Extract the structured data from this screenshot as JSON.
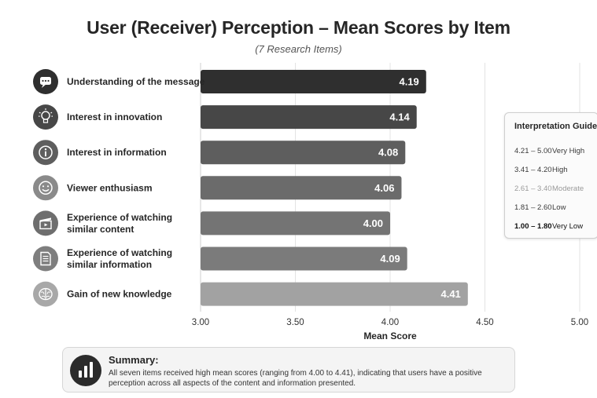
{
  "chart_data": {
    "type": "bar",
    "orientation": "horizontal",
    "title": "User (Receiver) Perception – Mean Scores by Item",
    "subtitle": "(7 Research Items)",
    "xlabel": "Mean Score",
    "ylabel": "",
    "xlim": [
      3.0,
      5.0
    ],
    "x_ticks": [
      "3.00",
      "3.50",
      "4.00",
      "4.50",
      "5.00"
    ],
    "grid": true,
    "categories": [
      [
        "Understanding of the message"
      ],
      [
        "Interest in innovation"
      ],
      [
        "Interest in information"
      ],
      [
        "Viewer enthusiasm"
      ],
      [
        "Experience of watching",
        "similar content"
      ],
      [
        "Experience of watching",
        "similar information"
      ],
      [
        "Gain of new knowledge"
      ]
    ],
    "values": [
      4.19,
      4.14,
      4.08,
      4.06,
      4.0,
      4.09,
      4.41
    ],
    "value_labels": [
      "4.19",
      "4.14",
      "4.08",
      "4.06",
      "4.00",
      "4.09",
      "4.41"
    ],
    "icons": [
      "chat-bubble-icon",
      "lightbulb-icon",
      "info-icon",
      "smiley-icon",
      "clapperboard-icon",
      "document-icon",
      "brain-icon"
    ],
    "bar_colors": [
      "#2f2f2f",
      "#474747",
      "#5e5e5e",
      "#6b6b6b",
      "#747474",
      "#7b7b7b",
      "#a2a2a2"
    ],
    "icon_colors": [
      "#2f2f2f",
      "#474747",
      "#5e5e5e",
      "#8a8a8a",
      "#6e6e6e",
      "#7e7e7e",
      "#a8a8a8"
    ]
  },
  "guide": {
    "title": "Interpretation Guide",
    "rows": [
      {
        "range": "4.21 – 5.00",
        "label": "Very High"
      },
      {
        "range": "3.41 – 4.20",
        "label": "High"
      },
      {
        "range": "2.61 – 3.40",
        "label": "Moderate"
      },
      {
        "range": "1.81 – 2.60",
        "label": "Low"
      },
      {
        "range": "1.00 – 1.80",
        "label": "Very Low"
      }
    ]
  },
  "summary": {
    "title": "Summary:",
    "text": "All seven items received high mean scores (ranging from 4.00 to 4.41), indicating that users have a positive perception across all aspects of the content and information presented.",
    "icon": "bar-chart-icon"
  }
}
